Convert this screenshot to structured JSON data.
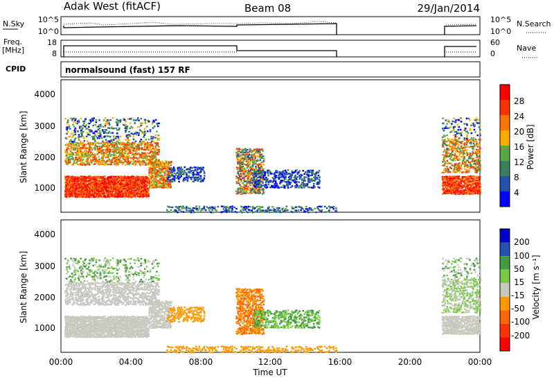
{
  "header": {
    "station": "Adak West (fitACF)",
    "beam": "Beam 08",
    "date": "29/Jan/2014"
  },
  "top_panels": {
    "nsky_label": "N.Sky",
    "nsky_ticks": [
      "10^5",
      "10^0"
    ],
    "nsearch_label": "N.Search",
    "nsearch_ticks": [
      "10^5",
      "10^0"
    ],
    "freq_label": "Freq.",
    "freq_unit": "[MHz]",
    "freq_ticks": [
      "18",
      "8"
    ],
    "nave_label": "Nave",
    "nave_ticks": [
      "60",
      "0"
    ],
    "cpid_label": "CPID",
    "cpid_value": "normalsound (fast) 157 RF"
  },
  "colors": {
    "power": [
      "#0000ff",
      "#2255aa",
      "#3a7f5f",
      "#55aa44",
      "#ffaa00",
      "#ff7700",
      "#ff3300",
      "#ff0000"
    ],
    "velocity": [
      "#ff0000",
      "#ff3300",
      "#ff6600",
      "#ff9900",
      "#c8c8c0",
      "#77cc44",
      "#449944",
      "#2255aa",
      "#0000cc"
    ]
  },
  "chart_data": [
    {
      "type": "heatmap",
      "name": "power",
      "ylabel": "Slant Range [km]",
      "yticks": [
        "4000",
        "3000",
        "2000",
        "1000"
      ],
      "colorbar_label": "Power [dB]",
      "colorbar_ticks": [
        "28",
        "24",
        "20",
        "16",
        "12",
        "8",
        "4"
      ],
      "xlabel": "",
      "xticks": [],
      "xlim": [
        0,
        24
      ],
      "ylim": [
        180,
        4500
      ]
    },
    {
      "type": "heatmap",
      "name": "velocity",
      "ylabel": "Slant Range [km]",
      "yticks": [
        "4000",
        "3000",
        "2000",
        "1000"
      ],
      "colorbar_label": "Velocity [m s⁻¹]",
      "colorbar_ticks": [
        "200",
        "100",
        "50",
        "15",
        "-15",
        "-50",
        "-100",
        "-200"
      ],
      "xlabel": "Time UT",
      "xticks": [
        "00:00",
        "04:00",
        "08:00",
        "12:00",
        "16:00",
        "20:00",
        "00:00"
      ],
      "xlim": [
        0,
        24
      ],
      "ylim": [
        180,
        4500
      ]
    }
  ]
}
